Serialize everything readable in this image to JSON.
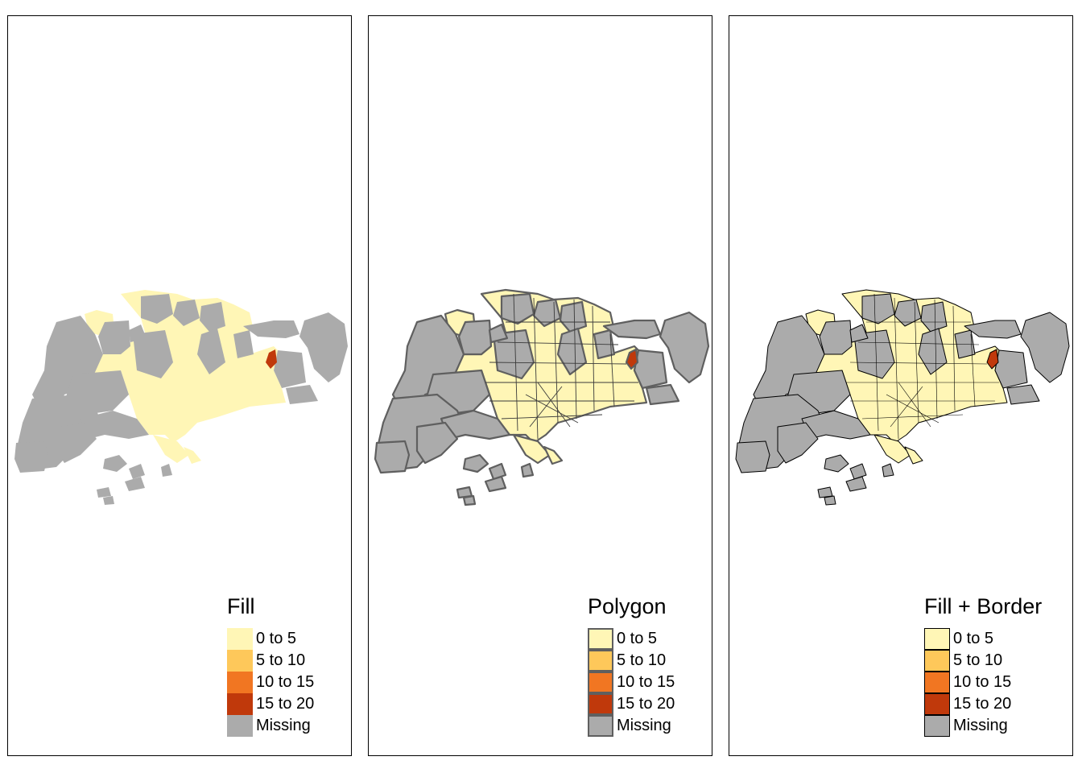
{
  "colors": {
    "missing": "#ababab",
    "water_gray_border": "#5f5f5f",
    "black_border": "#000000"
  },
  "legend_classes": [
    {
      "label": "0 to 5",
      "color": "#fff6b6"
    },
    {
      "label": "5 to 10",
      "color": "#fec85a"
    },
    {
      "label": "10 to 15",
      "color": "#f17622"
    },
    {
      "label": "15 to 20",
      "color": "#c0390b"
    },
    {
      "label": "Missing",
      "color": "#ababab"
    }
  ],
  "panels": [
    {
      "legend_title": "Fill",
      "style": "fill-only"
    },
    {
      "legend_title": "Polygon",
      "style": "thick-border"
    },
    {
      "legend_title": "Fill + Border",
      "style": "thin-border"
    }
  ]
}
